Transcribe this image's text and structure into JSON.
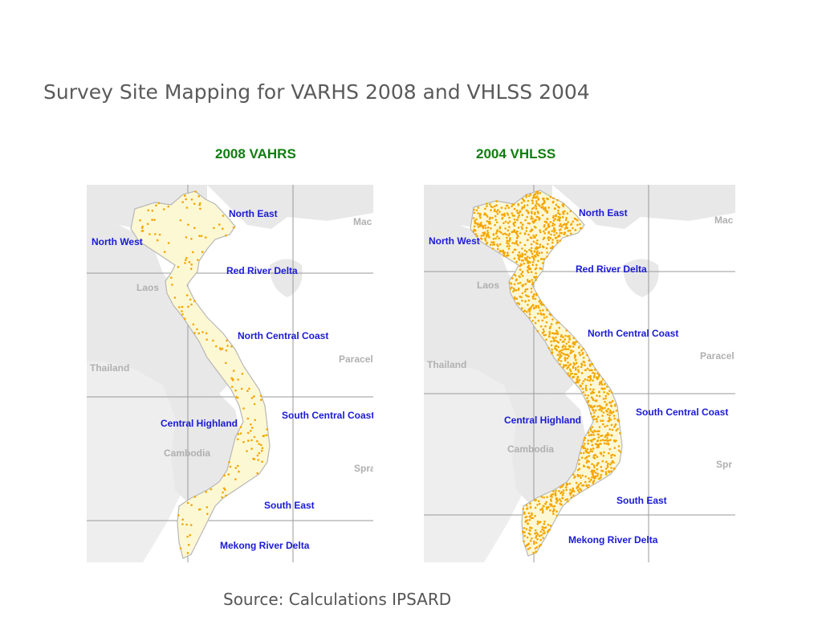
{
  "slide": {
    "title": "Survey Site Mapping for VARHS 2008 and VHLSS 2004",
    "source": "Source: Calculations IPSARD"
  },
  "maps": [
    {
      "heading": "2008 VAHRS",
      "density": "sparse",
      "regions": [
        "North East",
        "North West",
        "Red River Delta",
        "North Central Coast",
        "Central Highland",
        "South Central Coast",
        "South East",
        "Mekong River Delta"
      ],
      "countries": [
        "Laos",
        "Thailand",
        "Cambodia",
        "Mac",
        "Paracel",
        "Spra"
      ]
    },
    {
      "heading": "2004 VHLSS",
      "density": "dense",
      "regions": [
        "North East",
        "North West",
        "Red River Delta",
        "North Central Coast",
        "Central Highland",
        "South Central Coast",
        "South East",
        "Mekong River Delta"
      ],
      "countries": [
        "Laos",
        "Thailand",
        "Cambodia",
        "Mac",
        "Paracel",
        "Spr"
      ]
    }
  ],
  "colors": {
    "land_vietnam": "#fdf8d4",
    "land_neighbor": "#e8e8e8",
    "sea": "#ffffff",
    "survey_dot": "#f5a500",
    "region_label": "#1a1ad6",
    "heading": "#0f7d0f"
  }
}
